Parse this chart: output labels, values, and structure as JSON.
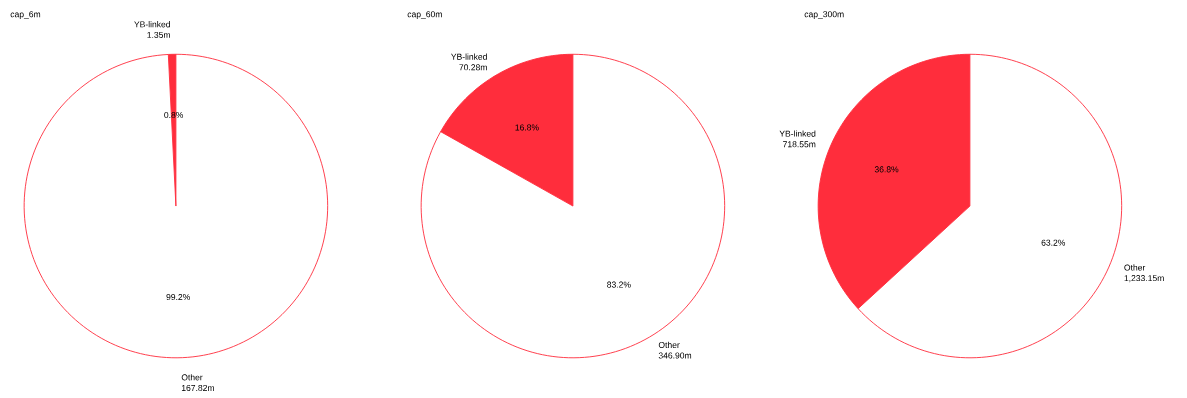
{
  "chart_data": [
    {
      "type": "pie",
      "title": "cap_6m",
      "categories": [
        "YB-linked",
        "Other"
      ],
      "values": [
        1.35,
        167.82
      ],
      "value_labels": [
        "1.35m",
        "167.82m"
      ],
      "colors": [
        "#ff2d3c",
        "#ffffff"
      ],
      "annotations": [
        "0.8%",
        "99.2%"
      ]
    },
    {
      "type": "pie",
      "title": "cap_60m",
      "categories": [
        "YB-linked",
        "Other"
      ],
      "values": [
        70.28,
        346.9
      ],
      "value_labels": [
        "70.28m",
        "346.90m"
      ],
      "colors": [
        "#ff2d3c",
        "#ffffff"
      ],
      "annotations": [
        "16.8%",
        "83.2%"
      ]
    },
    {
      "type": "pie",
      "title": "cap_300m",
      "categories": [
        "YB-linked",
        "Other"
      ],
      "values": [
        718.55,
        1233.15
      ],
      "value_labels": [
        "718.55m",
        "1,233.15m"
      ],
      "colors": [
        "#ff2d3c",
        "#ffffff"
      ],
      "annotations": [
        "36.8%",
        "63.2%"
      ]
    }
  ]
}
